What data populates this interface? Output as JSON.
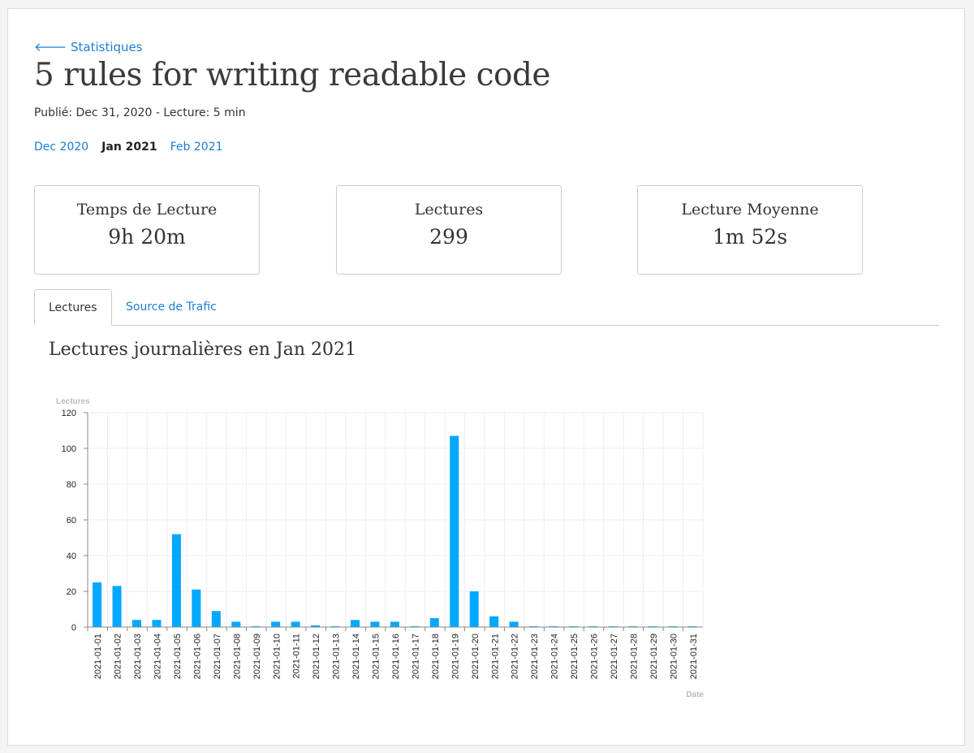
{
  "back_link": "Statistiques",
  "title": "5 rules for writing readable code",
  "meta": "Publié: Dec 31, 2020 - Lecture: 5 min",
  "months": {
    "prev": "Dec 2020",
    "current": "Jan 2021",
    "next": "Feb 2021"
  },
  "stats": [
    {
      "label": "Temps de Lecture",
      "value": "9h 20m"
    },
    {
      "label": "Lectures",
      "value": "299"
    },
    {
      "label": "Lecture Moyenne",
      "value": "1m 52s"
    }
  ],
  "tabs": {
    "active": "Lectures",
    "other": "Source de Trafic"
  },
  "chart_heading": "Lectures journalières en Jan 2021",
  "chart_data": {
    "type": "bar",
    "title": "Lectures journalières en Jan 2021",
    "xlabel": "Date",
    "ylabel": "Lectures",
    "ylim": [
      0,
      120
    ],
    "yticks": [
      0,
      20,
      40,
      60,
      80,
      100,
      120
    ],
    "color": "#00a8ff",
    "categories": [
      "2021-01-01",
      "2021-01-02",
      "2021-01-03",
      "2021-01-04",
      "2021-01-05",
      "2021-01-06",
      "2021-01-07",
      "2021-01-08",
      "2021-01-09",
      "2021-01-10",
      "2021-01-11",
      "2021-01-12",
      "2021-01-13",
      "2021-01-14",
      "2021-01-15",
      "2021-01-16",
      "2021-01-17",
      "2021-01-18",
      "2021-01-19",
      "2021-01-20",
      "2021-01-21",
      "2021-01-22",
      "2021-01-23",
      "2021-01-24",
      "2021-01-25",
      "2021-01-26",
      "2021-01-27",
      "2021-01-28",
      "2021-01-29",
      "2021-01-30",
      "2021-01-31"
    ],
    "values": [
      25,
      23,
      4,
      4,
      52,
      21,
      9,
      3,
      0,
      3,
      3,
      1,
      0,
      4,
      3,
      3,
      0,
      5,
      107,
      20,
      6,
      3,
      0,
      0,
      0,
      0,
      0,
      0,
      0,
      0,
      0
    ]
  }
}
